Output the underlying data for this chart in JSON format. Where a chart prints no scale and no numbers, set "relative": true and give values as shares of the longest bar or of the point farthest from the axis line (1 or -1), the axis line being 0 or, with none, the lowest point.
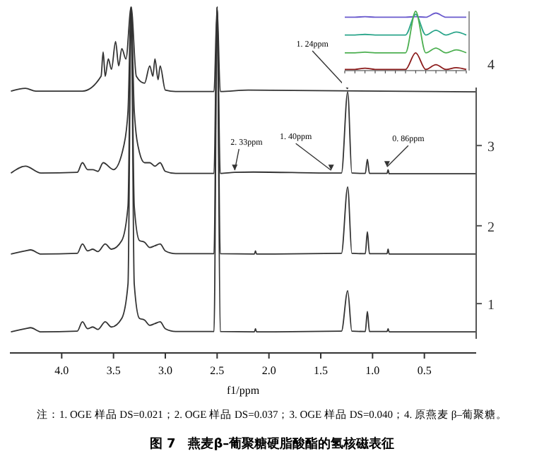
{
  "chart_data": [
    {
      "type": "line",
      "title": "图 7　燕麦β–葡聚糖硬脂酸酯的氢核磁表征",
      "xlabel": "f1/ppm",
      "relative": true,
      "xlim": [
        4.5,
        0.0
      ],
      "xticks": [
        {
          "value": 4.0,
          "label": "4.0"
        },
        {
          "value": 3.5,
          "label": "3.5"
        },
        {
          "value": 3.0,
          "label": "3.0"
        },
        2.5,
        {
          "value": 2.0,
          "label": "2.0"
        },
        1.5,
        {
          "value": 1.0,
          "label": "1.0"
        },
        0.5
      ],
      "legend": false,
      "annotations": [
        {
          "text": "2. 33ppm",
          "x": 2.33,
          "y": 0.52
        },
        {
          "text": "1. 40ppm",
          "x": 1.4,
          "y": 0.52
        },
        {
          "text": "1. 24ppm",
          "x": 1.24,
          "y": 0.755
        },
        {
          "text": "0. 86ppm",
          "x": 0.86,
          "y": 0.53
        },
        "注：1. OGE 样品 DS=0.021；2. OGE 样品 DS=0.037；3. OGE 样品 DS=0.040；4. 原燕麦 β–葡聚糖。"
      ],
      "series": [
        {
          "name": "1",
          "color": "#333333",
          "x": [
            4.49,
            4.35,
            4.3,
            4.2,
            3.85,
            3.8,
            3.75,
            3.7,
            3.65,
            3.58,
            3.52,
            3.42,
            3.36,
            3.33,
            3.3,
            3.25,
            3.2,
            3.15,
            3.1,
            3.05,
            3.0,
            2.9,
            2.53,
            2.5,
            2.47,
            2.14,
            2.13,
            2.12,
            1.3,
            1.24,
            1.2,
            1.07,
            1.05,
            1.03,
            0.86,
            0.85,
            0.84,
            0.0
          ],
          "values": [
            0.061,
            0.07,
            0.073,
            0.061,
            0.063,
            0.09,
            0.07,
            0.075,
            0.068,
            0.09,
            0.075,
            0.1,
            0.2,
            1,
            0.2,
            0.1,
            0.095,
            0.08,
            0.085,
            0.09,
            0.07,
            0.062,
            0.062,
            1,
            0.062,
            0.061,
            0.07,
            0.061,
            0.063,
            0.18,
            0.063,
            0.062,
            0.12,
            0.062,
            0.062,
            0.07,
            0.061,
            0.061
          ]
        },
        {
          "name": "2",
          "color": "#333333",
          "x": [
            4.49,
            4.35,
            4.3,
            4.2,
            3.85,
            3.8,
            3.75,
            3.7,
            3.65,
            3.58,
            3.52,
            3.42,
            3.36,
            3.33,
            3.3,
            3.25,
            3.2,
            3.15,
            3.1,
            3.05,
            3.0,
            2.9,
            2.53,
            2.5,
            2.47,
            2.14,
            2.13,
            2.12,
            1.3,
            1.24,
            1.2,
            1.07,
            1.05,
            1.03,
            0.86,
            0.85,
            0.84,
            0.0
          ],
          "values": [
            0.286,
            0.295,
            0.298,
            0.286,
            0.288,
            0.315,
            0.295,
            0.3,
            0.293,
            0.315,
            0.3,
            0.325,
            0.425,
            1,
            0.425,
            0.325,
            0.32,
            0.305,
            0.31,
            0.315,
            0.295,
            0.287,
            0.287,
            1,
            0.287,
            0.286,
            0.295,
            0.286,
            0.288,
            0.48,
            0.288,
            0.287,
            0.35,
            0.287,
            0.287,
            0.3,
            0.286,
            0.286
          ]
        },
        {
          "name": "3",
          "color": "#333333",
          "x": [
            4.49,
            4.35,
            4.2,
            3.85,
            3.8,
            3.75,
            3.7,
            3.65,
            3.6,
            3.5,
            3.4,
            3.36,
            3.33,
            3.3,
            3.25,
            3.2,
            3.15,
            3.1,
            3.05,
            3.0,
            2.9,
            2.53,
            2.5,
            2.47,
            2.33,
            2.15,
            1.4,
            1.3,
            1.24,
            1.2,
            1.07,
            1.05,
            1.03,
            0.86,
            0.85,
            0.84,
            0.0
          ],
          "values": [
            0.52,
            0.54,
            0.52,
            0.522,
            0.55,
            0.53,
            0.53,
            0.525,
            0.55,
            0.53,
            0.6,
            0.7,
            1,
            0.7,
            0.58,
            0.55,
            0.55,
            0.54,
            0.55,
            0.525,
            0.519,
            0.519,
            1,
            0.519,
            0.522,
            0.523,
            0.52,
            0.52,
            0.755,
            0.52,
            0.519,
            0.56,
            0.519,
            0.519,
            0.53,
            0.518,
            0.518
          ]
        },
        {
          "name": "4",
          "color": "#333333",
          "x": [
            4.49,
            4.35,
            4.25,
            3.8,
            3.62,
            3.6,
            3.58,
            3.55,
            3.52,
            3.48,
            3.45,
            3.42,
            3.38,
            3.33,
            3.28,
            3.2,
            3.15,
            3.12,
            3.1,
            3.07,
            3.05,
            3.0,
            2.9,
            2.53,
            2.5,
            2.47,
            2.2,
            0.0
          ],
          "values": [
            0.757,
            0.765,
            0.757,
            0.757,
            0.8,
            0.87,
            0.8,
            0.85,
            0.82,
            0.9,
            0.83,
            0.88,
            0.85,
            1,
            0.8,
            0.78,
            0.83,
            0.8,
            0.85,
            0.79,
            0.83,
            0.76,
            0.756,
            0.756,
            1,
            0.756,
            0.76,
            0.755
          ]
        }
      ]
    },
    {
      "type": "line",
      "relative": true,
      "categories": [
        null,
        null,
        null,
        null,
        null,
        null,
        null,
        null,
        null,
        null,
        null,
        null,
        null
      ],
      "series": [
        {
          "color": "#6a5acd",
          "values": [
            0.9,
            0.9,
            0.91,
            0.9,
            0.9,
            0.9,
            0.9,
            0.91,
            0.9,
            0.97,
            0.9,
            0.9,
            0.9
          ]
        },
        {
          "color": "#2aa58a",
          "values": [
            0.6,
            0.6,
            0.61,
            0.6,
            0.6,
            0.6,
            0.6,
            0.95,
            0.6,
            0.68,
            0.6,
            0.65,
            0.6
          ]
        },
        {
          "color": "#4caf50",
          "values": [
            0.3,
            0.3,
            0.31,
            0.3,
            0.3,
            0.3,
            0.3,
            1,
            0.3,
            0.38,
            0.3,
            0.35,
            0.3
          ]
        },
        {
          "color": "#8b1a1a",
          "values": [
            0.02,
            0.02,
            0.04,
            0.02,
            0.02,
            0.02,
            0.02,
            0.3,
            0.02,
            0.1,
            0.02,
            0.05,
            0.02
          ]
        }
      ]
    }
  ]
}
